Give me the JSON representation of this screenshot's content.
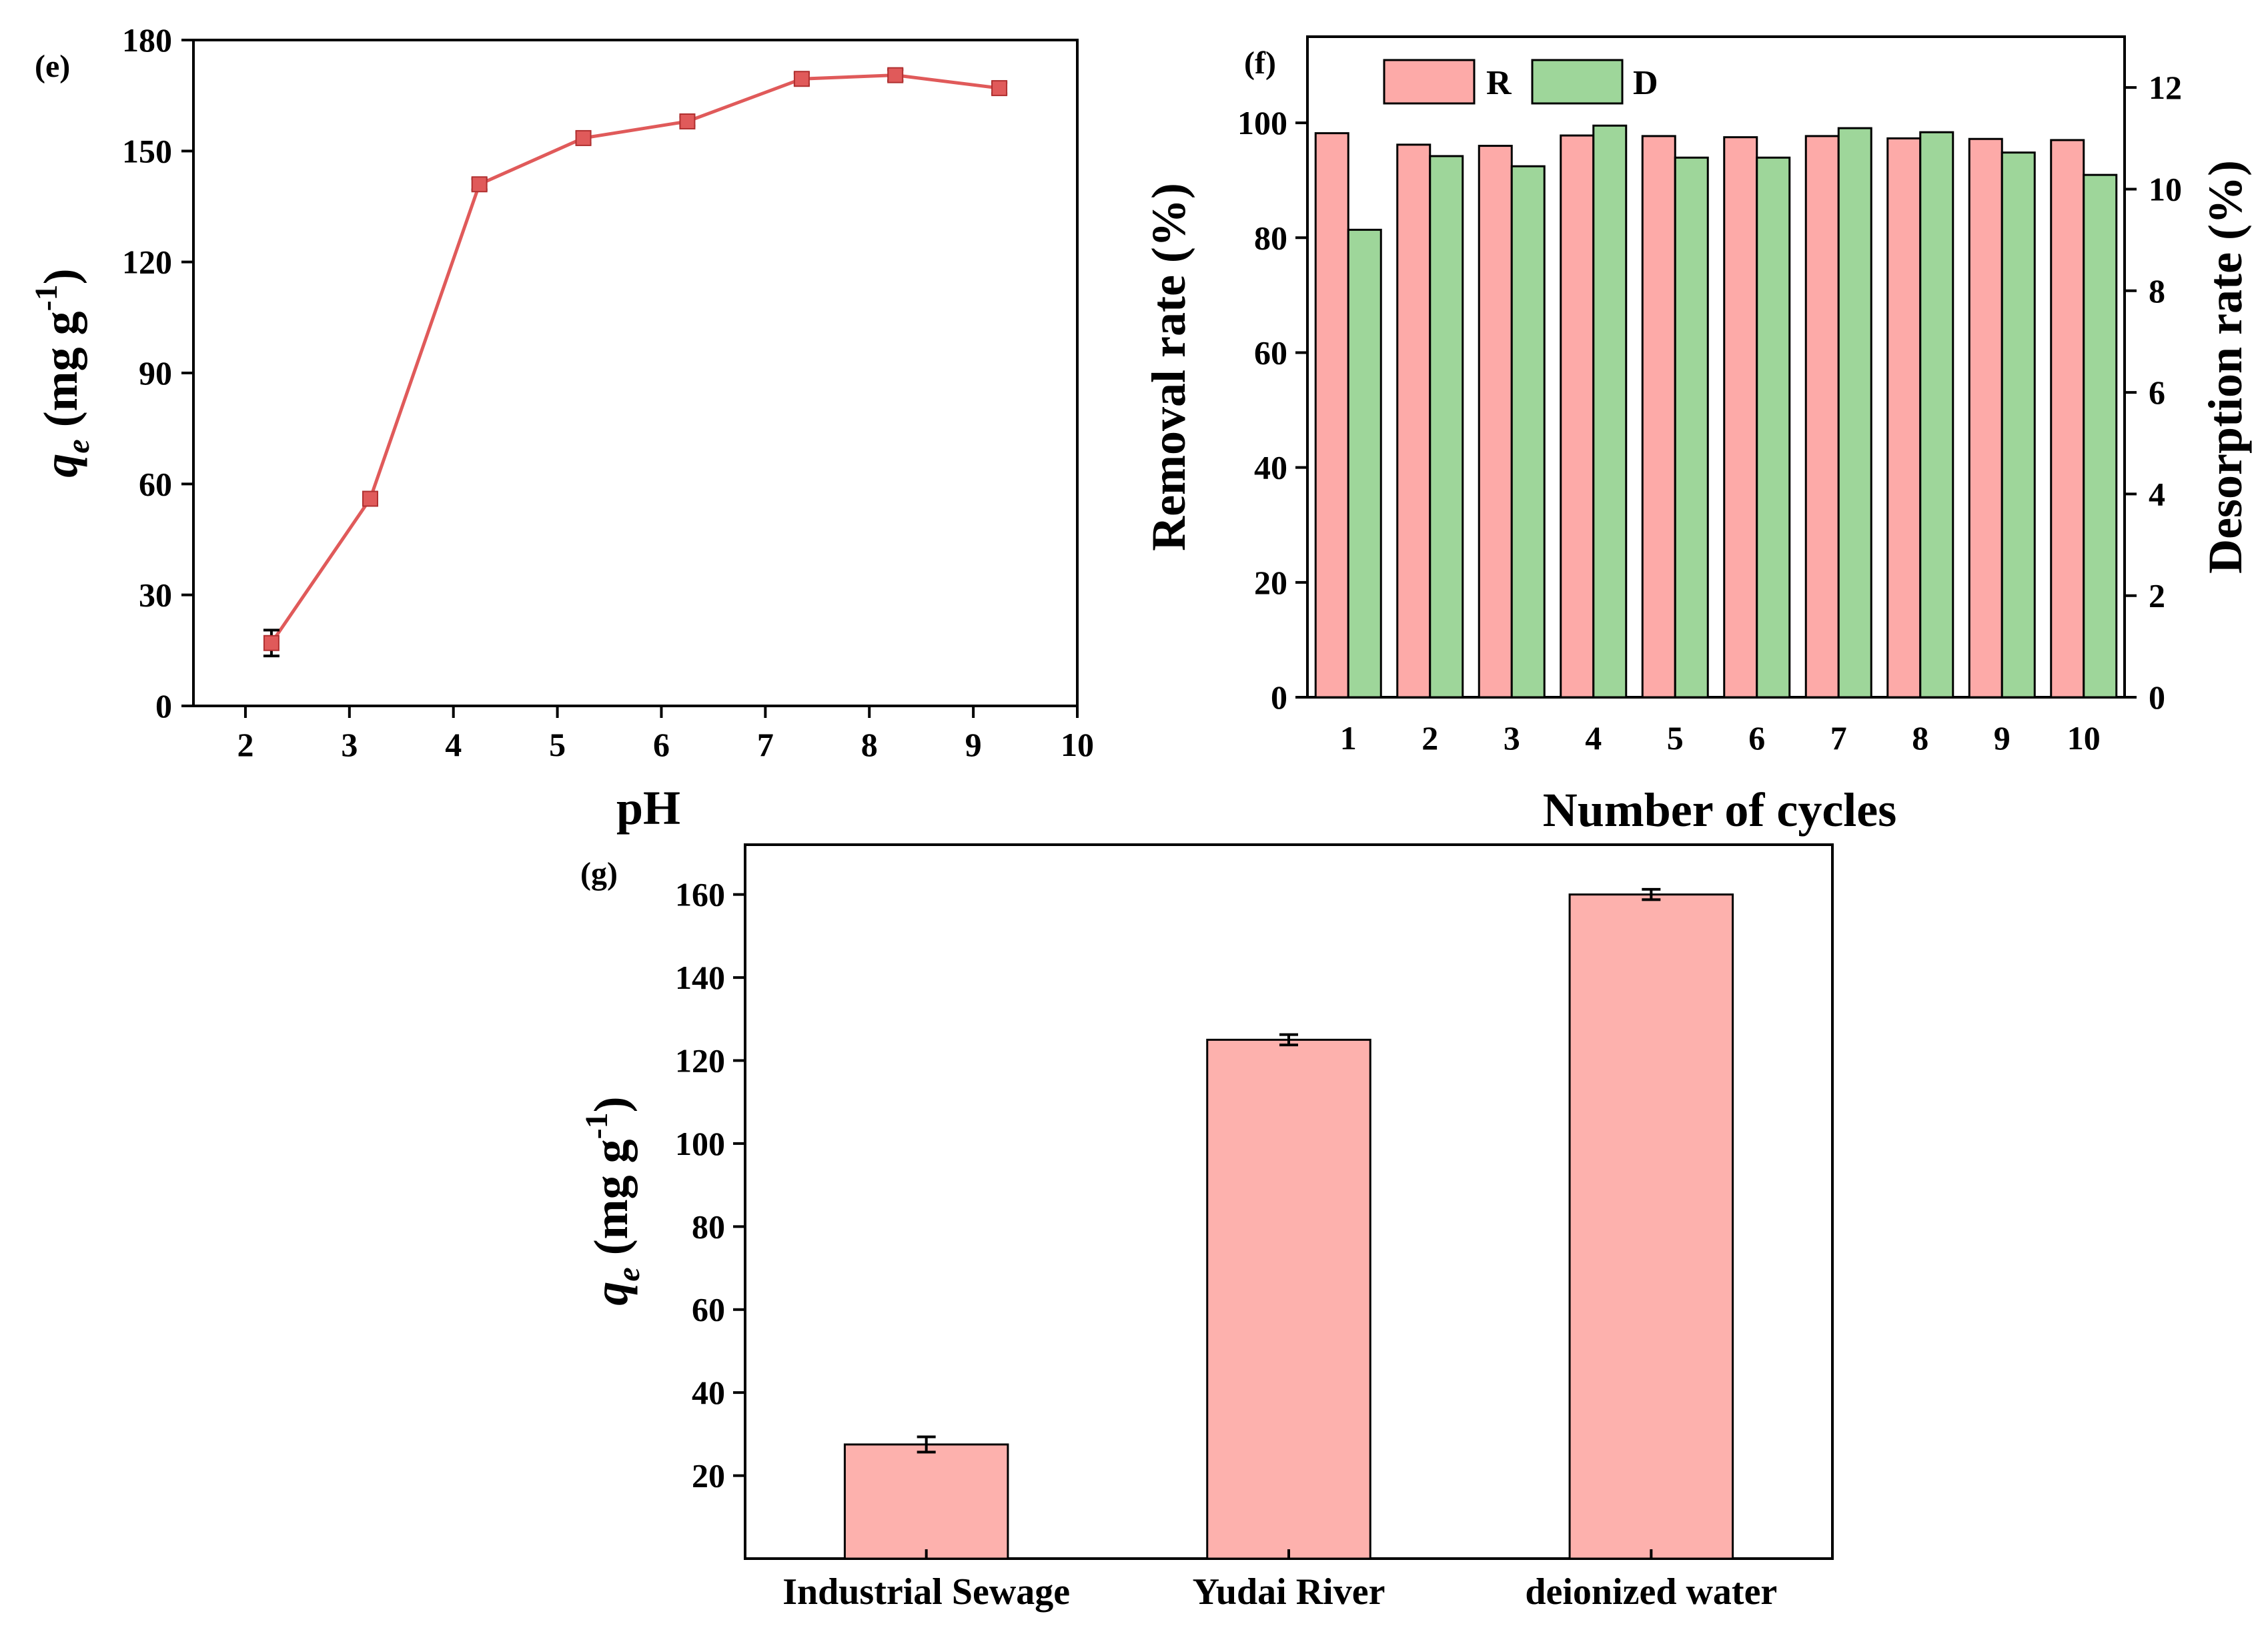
{
  "chart_data": [
    {
      "id": "e",
      "type": "line",
      "panel_label": "(e)",
      "title": "",
      "xlabel": "pH",
      "ylabel": "q_e (mg g^-1)",
      "ylabel_parts": {
        "main": "q",
        "sub": "e",
        "units": " (mg g",
        "sup": "-1",
        "close": ")"
      },
      "xlim": [
        1.5,
        10
      ],
      "ylim": [
        0,
        180
      ],
      "xticks": [
        2,
        3,
        4,
        5,
        6,
        7,
        8,
        9,
        10
      ],
      "yticks": [
        0,
        30,
        60,
        90,
        120,
        150,
        180
      ],
      "series": [
        {
          "name": "qe",
          "color": "#e05a5a",
          "x": [
            2.25,
            3.2,
            4.25,
            5.25,
            6.25,
            7.35,
            8.25,
            9.25
          ],
          "y": [
            17,
            56,
            141,
            153.5,
            158,
            169.5,
            170.5,
            167
          ],
          "err": [
            3.5,
            1.2,
            1.5,
            1.5,
            1.2,
            1.5,
            1.5,
            1.5
          ]
        }
      ]
    },
    {
      "id": "f",
      "type": "bar",
      "panel_label": "(f)",
      "title": "",
      "xlabel": "Number of cycles",
      "ylabel": "Removal rate (%)",
      "ylabel_right": "Desorption rate (%)",
      "categories": [
        "1",
        "2",
        "3",
        "4",
        "5",
        "6",
        "7",
        "8",
        "9",
        "10"
      ],
      "ylim": [
        0,
        115
      ],
      "ylim_right": [
        0,
        13
      ],
      "yticks": [
        0,
        20,
        40,
        60,
        80,
        100
      ],
      "yticks_right": [
        0,
        2,
        4,
        6,
        8,
        10,
        12
      ],
      "legend": "top-left",
      "series": [
        {
          "name": "R",
          "axis": "left",
          "color": "#fdaaa8",
          "values": [
            98.2,
            96.2,
            96.0,
            97.8,
            97.7,
            97.5,
            97.7,
            97.3,
            97.2,
            97.0
          ]
        },
        {
          "name": "D",
          "axis": "right",
          "color": "#9ed69a",
          "values": [
            9.2,
            10.65,
            10.45,
            11.25,
            10.62,
            10.62,
            11.2,
            11.12,
            10.72,
            10.28
          ]
        }
      ]
    },
    {
      "id": "g",
      "type": "bar",
      "panel_label": "(g)",
      "title": "",
      "xlabel": "",
      "ylabel": "q_e (mg g^-1)",
      "ylabel_parts": {
        "main": "q",
        "sub": "e",
        "units": " (mg g",
        "sup": "-1",
        "close": ")"
      },
      "categories": [
        "Industrial Sewage",
        "Yudai River",
        "deionized water"
      ],
      "ylim": [
        0,
        172
      ],
      "yticks": [
        20,
        40,
        60,
        80,
        100,
        120,
        140,
        160
      ],
      "series": [
        {
          "name": "qe",
          "color": "#fdb1ad",
          "values": [
            27.5,
            125,
            160
          ],
          "err": [
            1.2,
            0.6,
            0.6
          ]
        }
      ]
    }
  ]
}
